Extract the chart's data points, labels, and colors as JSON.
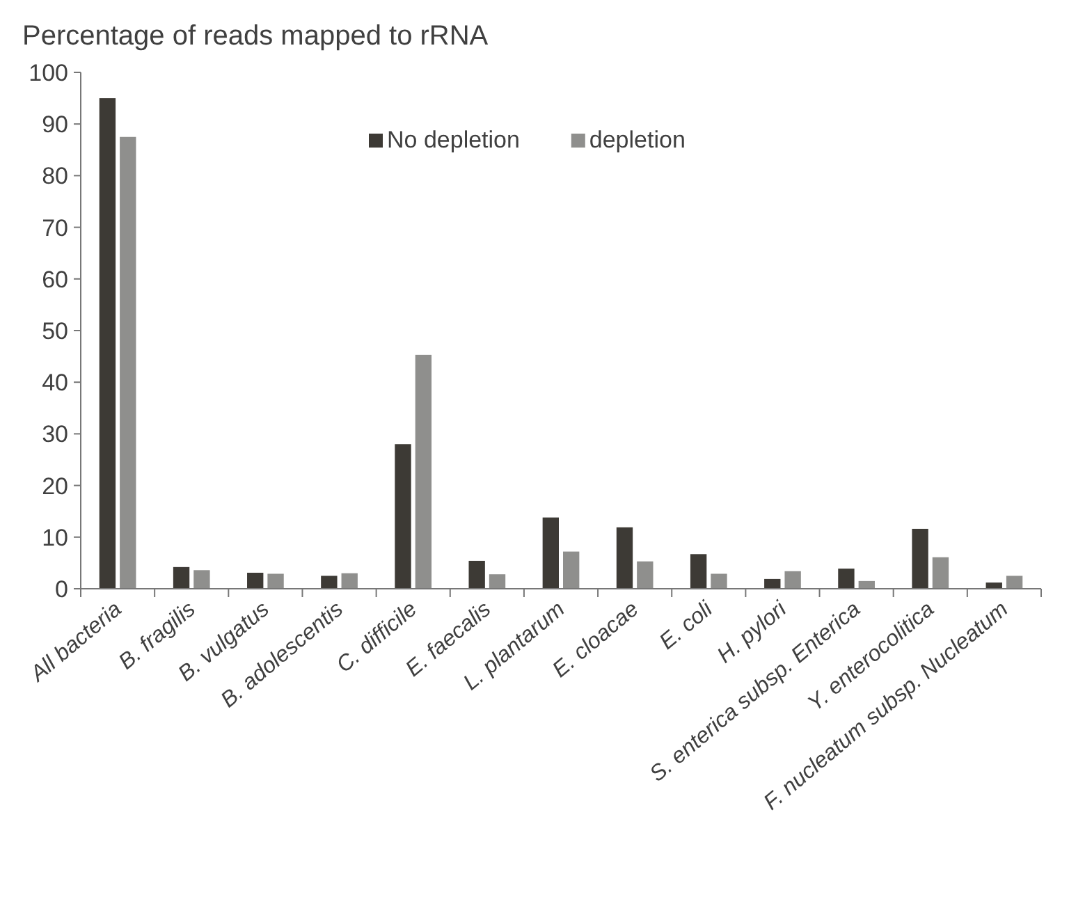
{
  "chart_data": {
    "type": "bar",
    "title": "Percentage of reads mapped to rRNA",
    "categories": [
      "All bacteria",
      "B. fragilis",
      "B. vulgatus",
      "B. adolescentis",
      "C. difficile",
      "E. faecalis",
      "L. plantarum",
      "E. cloacae",
      "E. coli",
      "H. pylori",
      "S. enterica subsp. Enterica",
      "Y. enterocolitica",
      "F. nucleatum subsp. Nucleatum"
    ],
    "series": [
      {
        "name": "No depletion",
        "color": "#3d3a35",
        "values": [
          95,
          4.2,
          3.1,
          2.5,
          28,
          5.4,
          13.8,
          11.9,
          6.7,
          1.9,
          3.9,
          11.6,
          1.2
        ]
      },
      {
        "name": "depletion",
        "color": "#8f8f8d",
        "values": [
          87.5,
          3.6,
          2.9,
          3.0,
          45.3,
          2.8,
          7.2,
          5.3,
          2.9,
          3.4,
          1.5,
          6.1,
          2.5
        ]
      }
    ],
    "ylim": [
      0,
      100
    ],
    "yticks": [
      0,
      10,
      20,
      30,
      40,
      50,
      60,
      70,
      80,
      90,
      100
    ],
    "grid": false,
    "legend": "top right"
  }
}
